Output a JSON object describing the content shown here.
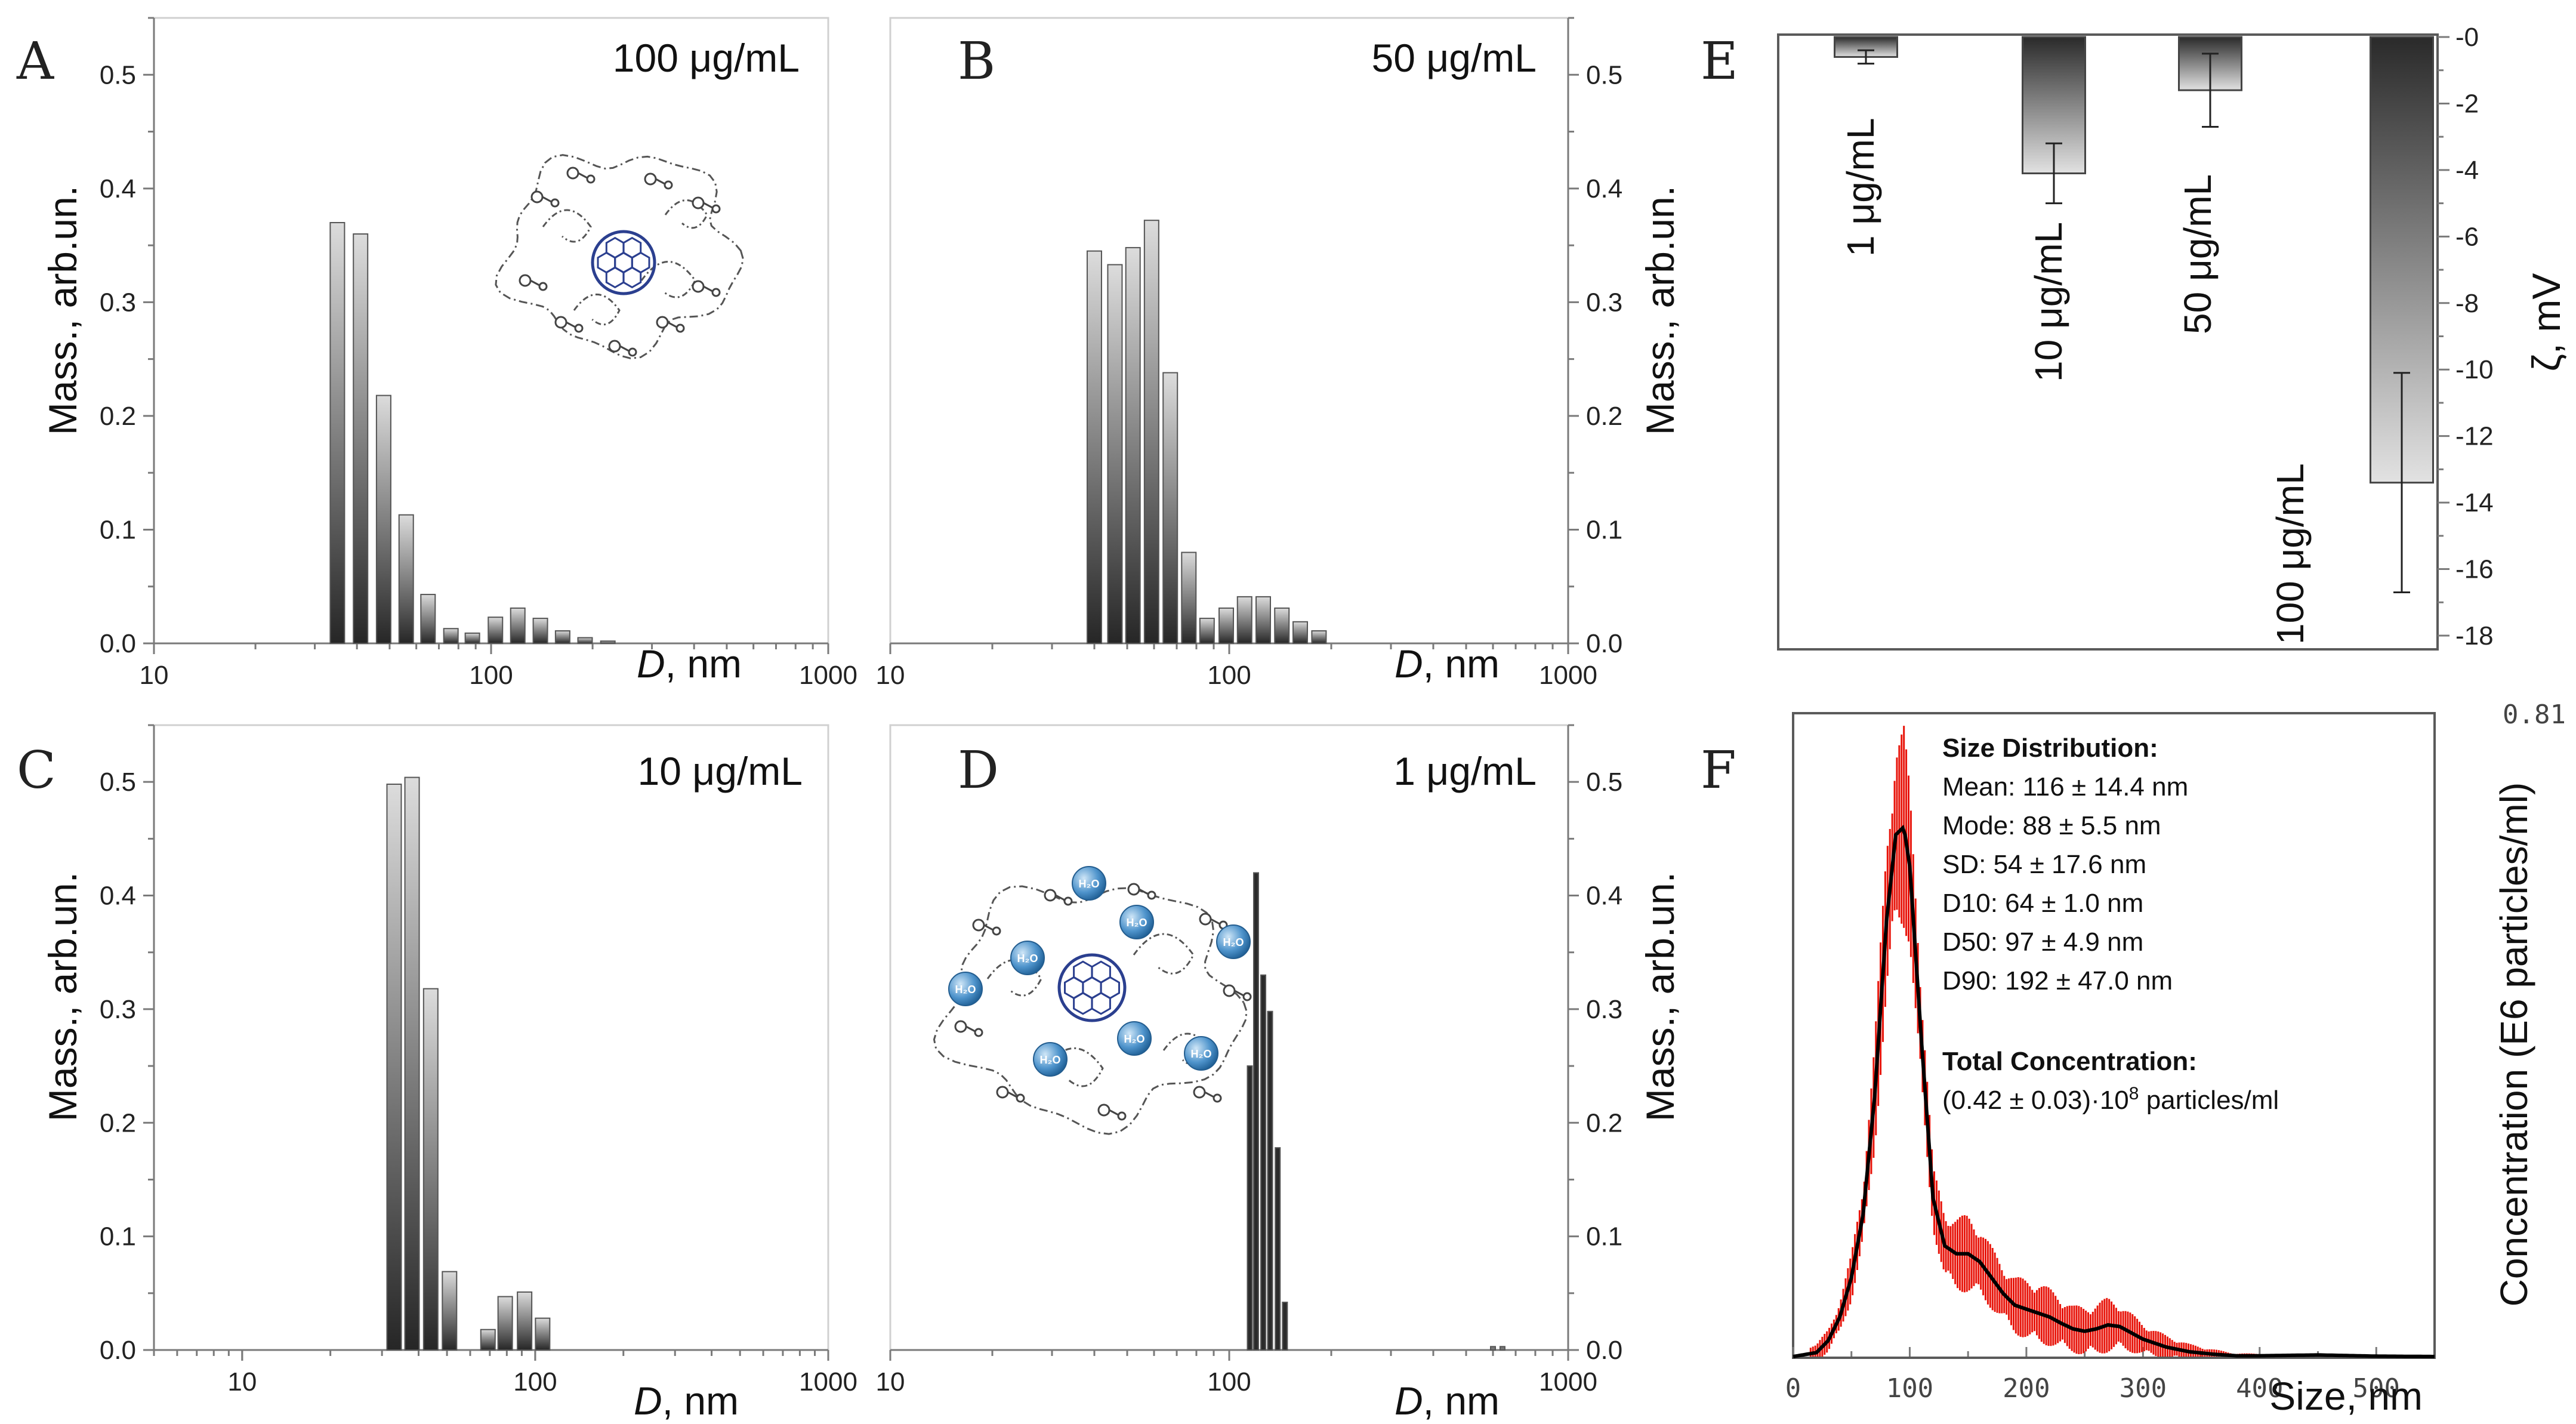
{
  "dls_panels": [
    {
      "id": "A",
      "letter": "A",
      "concentration_label": "100 μg/mL",
      "ylabel": "Mass., arb.un.",
      "xlabel_var": "D",
      "xlabel_unit": ", nm",
      "x_ticks": [
        "10",
        "100",
        "1000"
      ],
      "y_ticks": [
        "0.0",
        "0.1",
        "0.2",
        "0.3",
        "0.4",
        "0.5"
      ],
      "has_inset": true
    },
    {
      "id": "B",
      "letter": "B",
      "concentration_label": "50 μg/mL",
      "ylabel": "Mass., arb.un.",
      "xlabel_var": "D",
      "xlabel_unit": ", nm",
      "x_ticks": [
        "10",
        "100",
        "1000"
      ],
      "y_ticks": [
        "0.0",
        "0.1",
        "0.2",
        "0.3",
        "0.4",
        "0.5"
      ],
      "has_inset": false
    },
    {
      "id": "C",
      "letter": "C",
      "concentration_label": "10 μg/mL",
      "ylabel": "Mass., arb.un.",
      "xlabel_var": "D",
      "xlabel_unit": ", nm",
      "x_ticks": [
        "10",
        "100",
        "1000"
      ],
      "y_ticks": [
        "0.0",
        "0.1",
        "0.2",
        "0.3",
        "0.4",
        "0.5"
      ],
      "has_inset": false
    },
    {
      "id": "D",
      "letter": "D",
      "concentration_label": "1 μg/mL",
      "ylabel": "Mass., arb.un.",
      "xlabel_var": "D",
      "xlabel_unit": ", nm",
      "x_ticks": [
        "10",
        "100",
        "1000"
      ],
      "y_ticks": [
        "0.0",
        "0.1",
        "0.2",
        "0.3",
        "0.4",
        "0.5"
      ],
      "has_inset": true
    }
  ],
  "panel_e": {
    "letter": "E",
    "ylabel": "ζ, mV",
    "y_ticks": [
      "-0",
      "-2",
      "-4",
      "-6",
      "-8",
      "-10",
      "-12",
      "-14",
      "-16",
      "-18"
    ]
  },
  "panel_f": {
    "letter": "F",
    "corner_value": "0.81",
    "ylabel": "Concentration (E6 particles/ml)",
    "xlabel": "Size, nm",
    "x_ticks": [
      "0",
      "100",
      "200",
      "300",
      "400",
      "500"
    ],
    "info": {
      "heading": "Size Distribution:",
      "lines": [
        "Mean: 116 ± 14.4 nm",
        "Mode: 88 ± 5.5 nm",
        "SD: 54 ± 17.6 nm",
        "D10: 64 ± 1.0 nm",
        "D50: 97 ± 4.9 nm",
        "D90: 192 ± 47.0 nm"
      ],
      "total_heading": "Total Concentration:",
      "total_value_prefix": "(0.42 ± 0.03)·10",
      "total_value_exp": "8",
      "total_value_suffix": " particles/ml"
    }
  },
  "inset_molecule_label": "H₂O",
  "chart_data": [
    {
      "type": "bar",
      "panel": "A",
      "title": "100 μg/mL",
      "xlabel": "D, nm",
      "ylabel": "Mass., arb.un.",
      "xscale": "log",
      "xlim": [
        10,
        1000
      ],
      "ylim": [
        0,
        0.55
      ],
      "x": [
        35,
        41,
        48,
        56,
        65,
        76,
        88,
        103,
        120,
        140,
        163,
        190,
        222
      ],
      "values": [
        0.37,
        0.36,
        0.218,
        0.113,
        0.043,
        0.013,
        0.009,
        0.023,
        0.031,
        0.022,
        0.011,
        0.005,
        0.002
      ]
    },
    {
      "type": "bar",
      "panel": "B",
      "title": "50 μg/mL",
      "xlabel": "D, nm",
      "ylabel": "Mass., arb.un.",
      "xscale": "log",
      "xlim": [
        10,
        1000
      ],
      "ylim": [
        0,
        0.55
      ],
      "x": [
        40,
        46,
        52,
        59,
        67,
        76,
        86,
        98,
        111,
        126,
        143,
        162,
        184
      ],
      "values": [
        0.345,
        0.333,
        0.348,
        0.372,
        0.238,
        0.08,
        0.022,
        0.031,
        0.041,
        0.041,
        0.031,
        0.019,
        0.011
      ]
    },
    {
      "type": "bar",
      "panel": "C",
      "title": "10 μg/mL",
      "xlabel": "D, nm",
      "ylabel": "Mass., arb.un.",
      "xscale": "log",
      "xlim": [
        5,
        1000
      ],
      "ylim": [
        0,
        0.55
      ],
      "x": [
        33,
        38,
        44,
        51,
        69,
        79,
        92,
        106
      ],
      "values": [
        0.498,
        0.504,
        0.318,
        0.069,
        0.018,
        0.047,
        0.051,
        0.028
      ]
    },
    {
      "type": "bar",
      "panel": "D",
      "title": "1 μg/mL",
      "xlabel": "D, nm",
      "ylabel": "Mass., arb.un.",
      "xscale": "log",
      "xlim": [
        10,
        1000
      ],
      "ylim": [
        0,
        0.55
      ],
      "x": [
        115,
        120,
        126,
        132,
        139,
        146,
        600,
        640
      ],
      "values": [
        0.25,
        0.42,
        0.33,
        0.298,
        0.178,
        0.042,
        0.003,
        0.003
      ]
    },
    {
      "type": "bar",
      "panel": "E",
      "orientation": "downward",
      "ylabel": "ζ, mV",
      "ylim": [
        0,
        -18
      ],
      "categories": [
        "1 μg/mL",
        "10 μg/mL",
        "50 μg/mL",
        "100 μg/mL"
      ],
      "values": [
        -0.6,
        -4.1,
        -1.6,
        -13.4
      ],
      "errors": [
        0.2,
        0.9,
        1.1,
        3.3
      ]
    },
    {
      "type": "line",
      "panel": "F",
      "xlabel": "Size, nm",
      "ylabel": "Concentration (E6 particles/ml)",
      "xlim": [
        0,
        550
      ],
      "ylim": [
        0,
        0.81
      ],
      "series": [
        {
          "name": "mean",
          "color": "#000000",
          "x": [
            0,
            20,
            30,
            40,
            50,
            60,
            70,
            80,
            88,
            95,
            100,
            110,
            120,
            130,
            140,
            150,
            160,
            170,
            180,
            190,
            200,
            210,
            220,
            230,
            240,
            250,
            260,
            270,
            280,
            290,
            300,
            320,
            340,
            360,
            380,
            400,
            450,
            500,
            550
          ],
          "y": [
            0,
            0.005,
            0.02,
            0.05,
            0.1,
            0.18,
            0.33,
            0.55,
            0.66,
            0.67,
            0.62,
            0.4,
            0.2,
            0.14,
            0.13,
            0.13,
            0.12,
            0.1,
            0.08,
            0.065,
            0.06,
            0.055,
            0.05,
            0.042,
            0.035,
            0.032,
            0.035,
            0.04,
            0.038,
            0.03,
            0.022,
            0.012,
            0.006,
            0.003,
            0.001,
            0.001,
            0.002,
            0.0005,
            0
          ]
        },
        {
          "name": "error_band",
          "color": "#e8140a",
          "x": [
            20,
            40,
            60,
            80,
            88,
            95,
            100,
            120,
            150,
            180,
            210,
            240,
            270,
            300,
            340,
            380
          ],
          "err": [
            0.01,
            0.02,
            0.04,
            0.1,
            0.12,
            0.13,
            0.1,
            0.04,
            0.05,
            0.035,
            0.04,
            0.03,
            0.035,
            0.02,
            0.01,
            0.003
          ]
        }
      ]
    }
  ],
  "colors": {
    "bar_light": "#e0e0e0",
    "bar_dark": "#2a2a2a",
    "nta_red": "#e8140a",
    "nta_line": "#000000",
    "fullerene": "#2b3f8f",
    "water_sphere": "#4a90c8"
  }
}
